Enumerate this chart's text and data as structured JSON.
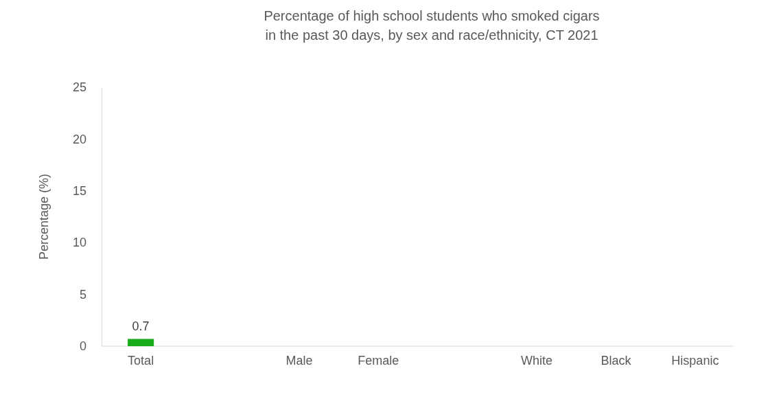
{
  "chart_data": {
    "type": "bar",
    "title": "Percentage of high school students who smoked cigars\nin the past 30 days, by sex and race/ethnicity, CT 2021",
    "ylabel": "Percentage (%)",
    "categories": [
      "Total",
      null,
      "Male",
      "Female",
      null,
      "White",
      "Black",
      "Hispanic"
    ],
    "values": [
      0.7,
      null,
      null,
      null,
      null,
      null,
      null,
      null
    ],
    "color": "#1aab1a",
    "ylim": [
      0,
      25
    ],
    "yticks": [
      0,
      5,
      10,
      15,
      20,
      25
    ],
    "grid": false,
    "data_labels": true
  }
}
